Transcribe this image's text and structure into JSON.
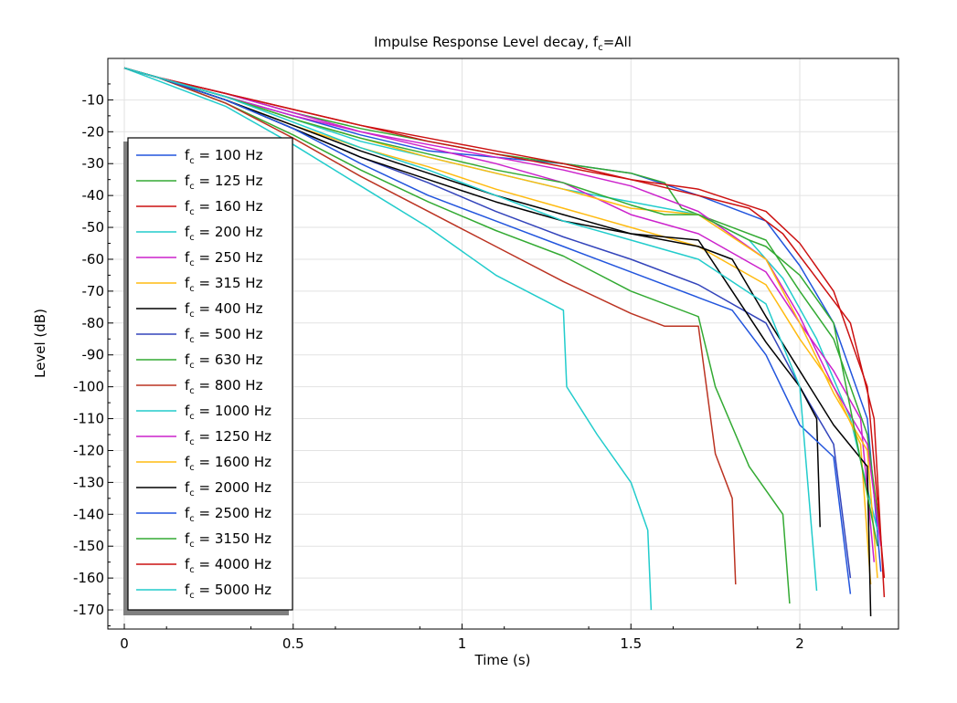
{
  "chart_data": {
    "type": "line",
    "title": "Impulse Response   Level decay, f",
    "title_sub": "c",
    "title_tail": "=All",
    "xlabel": "Time (s)",
    "ylabel": "Level (dB)",
    "xlim": [
      0,
      2.3
    ],
    "ylim": [
      -176,
      3
    ],
    "xticks": [
      0,
      0.5,
      1,
      1.5,
      2
    ],
    "xtick_labels": [
      "0",
      "0.5",
      "1",
      "1.5",
      "2"
    ],
    "yticks": [
      -10,
      -20,
      -30,
      -40,
      -50,
      -60,
      -70,
      -80,
      -90,
      -100,
      -110,
      -120,
      -130,
      -140,
      -150,
      -160,
      -170
    ],
    "grid": true,
    "legend_placement": "left",
    "legend_prefix": "f",
    "legend_prefix_sub": "c",
    "series": [
      {
        "name": " = 100 Hz",
        "color": "#2255dd",
        "x": [
          0,
          0.1,
          0.3,
          0.5,
          0.7,
          0.9,
          1.1,
          1.3,
          1.5,
          1.7,
          1.9,
          2.0,
          2.1,
          2.2,
          2.24
        ],
        "y": [
          0,
          -3,
          -9,
          -15,
          -21,
          -26,
          -28,
          -30,
          -33,
          -40,
          -48,
          -62,
          -80,
          -110,
          -158
        ]
      },
      {
        "name": " = 125 Hz",
        "color": "#33aa33",
        "x": [
          0,
          0.1,
          0.3,
          0.5,
          0.7,
          0.9,
          1.1,
          1.3,
          1.5,
          1.6,
          1.65,
          1.8,
          1.9,
          2.0,
          2.1,
          2.2,
          2.24
        ],
        "y": [
          0,
          -3,
          -8,
          -14,
          -19,
          -23,
          -27,
          -30,
          -33,
          -36,
          -44,
          -50,
          -54,
          -70,
          -85,
          -115,
          -148
        ]
      },
      {
        "name": " = 160 Hz",
        "color": "#cc1111",
        "x": [
          0,
          0.1,
          0.3,
          0.5,
          0.7,
          0.9,
          1.1,
          1.3,
          1.5,
          1.7,
          1.85,
          1.95,
          2.05,
          2.15,
          2.22,
          2.25
        ],
        "y": [
          0,
          -3,
          -8,
          -13,
          -18,
          -23,
          -27,
          -31,
          -35,
          -40,
          -44,
          -52,
          -66,
          -80,
          -110,
          -166
        ]
      },
      {
        "name": " = 200 Hz",
        "color": "#22cccc",
        "x": [
          0,
          0.1,
          0.3,
          0.5,
          0.7,
          0.9,
          1.1,
          1.3,
          1.5,
          1.7,
          1.85,
          1.95,
          2.05,
          2.15,
          2.23
        ],
        "y": [
          0,
          -3,
          -9,
          -16,
          -23,
          -28,
          -33,
          -38,
          -42,
          -46,
          -54,
          -66,
          -85,
          -110,
          -145
        ]
      },
      {
        "name": " = 250 Hz",
        "color": "#cc22cc",
        "x": [
          0,
          0.1,
          0.3,
          0.5,
          0.7,
          0.9,
          1.1,
          1.3,
          1.5,
          1.7,
          1.9,
          2.0,
          2.1,
          2.18,
          2.22
        ],
        "y": [
          0,
          -3,
          -9,
          -15,
          -20,
          -25,
          -30,
          -36,
          -46,
          -52,
          -64,
          -80,
          -95,
          -110,
          -155
        ]
      },
      {
        "name": " = 315 Hz",
        "color": "#ffbb11",
        "x": [
          0,
          0.1,
          0.3,
          0.5,
          0.7,
          0.9,
          1.1,
          1.3,
          1.5,
          1.7,
          1.9,
          2.0,
          2.1,
          2.18,
          2.21
        ],
        "y": [
          0,
          -3,
          -10,
          -18,
          -25,
          -31,
          -38,
          -44,
          -50,
          -56,
          -68,
          -85,
          -100,
          -118,
          -162
        ]
      },
      {
        "name": " = 400 Hz",
        "color": "#000000",
        "x": [
          0,
          0.1,
          0.3,
          0.5,
          0.7,
          0.9,
          1.1,
          1.3,
          1.5,
          1.7,
          1.8,
          1.9,
          2.0,
          2.1,
          2.2,
          2.21
        ],
        "y": [
          0,
          -3,
          -10,
          -18,
          -26,
          -33,
          -40,
          -46,
          -52,
          -56,
          -60,
          -78,
          -95,
          -112,
          -125,
          -172
        ]
      },
      {
        "name": " = 500 Hz",
        "color": "#3344bb",
        "x": [
          0,
          0.1,
          0.3,
          0.5,
          0.7,
          0.9,
          1.1,
          1.3,
          1.5,
          1.7,
          1.9,
          2.0,
          2.1,
          2.15
        ],
        "y": [
          0,
          -3,
          -10,
          -19,
          -28,
          -36,
          -45,
          -53,
          -60,
          -68,
          -80,
          -100,
          -118,
          -160
        ]
      },
      {
        "name": " = 630 Hz",
        "color": "#33aa33",
        "x": [
          0,
          0.1,
          0.3,
          0.5,
          0.7,
          0.9,
          1.1,
          1.3,
          1.5,
          1.7,
          1.75,
          1.85,
          1.95,
          1.97
        ],
        "y": [
          0,
          -3,
          -11,
          -21,
          -32,
          -42,
          -51,
          -59,
          -70,
          -78,
          -100,
          -125,
          -140,
          -168
        ]
      },
      {
        "name": " = 800 Hz",
        "color": "#bb3322",
        "x": [
          0,
          0.1,
          0.3,
          0.5,
          0.7,
          0.9,
          1.1,
          1.3,
          1.5,
          1.6,
          1.7,
          1.75,
          1.8,
          1.81
        ],
        "y": [
          0,
          -3,
          -11,
          -22,
          -34,
          -45,
          -56,
          -67,
          -77,
          -81,
          -81,
          -121,
          -135,
          -162
        ]
      },
      {
        "name": " = 1000 Hz",
        "color": "#22cccc",
        "x": [
          0,
          0.1,
          0.3,
          0.5,
          0.7,
          0.9,
          1.1,
          1.3,
          1.31,
          1.4,
          1.5,
          1.55,
          1.56
        ],
        "y": [
          0,
          -4,
          -12,
          -24,
          -37,
          -50,
          -65,
          -76,
          -100,
          -115,
          -130,
          -145,
          -170
        ]
      },
      {
        "name": " = 1250 Hz",
        "color": "#cc22cc",
        "x": [
          0,
          0.1,
          0.3,
          0.5,
          0.7,
          0.9,
          1.1,
          1.3,
          1.5,
          1.7,
          1.9,
          2.0,
          2.1,
          2.2,
          2.24
        ],
        "y": [
          0,
          -3,
          -8,
          -14,
          -20,
          -24,
          -28,
          -32,
          -37,
          -45,
          -60,
          -78,
          -100,
          -118,
          -150
        ]
      },
      {
        "name": " = 1600 Hz",
        "color": "#ffbb11",
        "x": [
          0,
          0.1,
          0.3,
          0.5,
          0.7,
          0.9,
          1.1,
          1.3,
          1.5,
          1.7,
          1.9,
          2.0,
          2.1,
          2.2,
          2.23
        ],
        "y": [
          0,
          -3,
          -9,
          -16,
          -22,
          -28,
          -33,
          -38,
          -44,
          -46,
          -60,
          -80,
          -102,
          -120,
          -160
        ]
      },
      {
        "name": " = 2000 Hz",
        "color": "#000000",
        "x": [
          0,
          0.1,
          0.3,
          0.5,
          0.7,
          0.9,
          1.1,
          1.3,
          1.5,
          1.7,
          1.8,
          1.9,
          2.0,
          2.05,
          2.06
        ],
        "y": [
          0,
          -3,
          -10,
          -19,
          -28,
          -35,
          -42,
          -48,
          -52,
          -54,
          -70,
          -86,
          -100,
          -110,
          -144
        ]
      },
      {
        "name": " = 2500 Hz",
        "color": "#2255dd",
        "x": [
          0,
          0.1,
          0.3,
          0.5,
          0.7,
          0.9,
          1.1,
          1.3,
          1.5,
          1.7,
          1.8,
          1.9,
          2.0,
          2.1,
          2.15
        ],
        "y": [
          0,
          -3,
          -10,
          -19,
          -30,
          -40,
          -48,
          -56,
          -64,
          -72,
          -76,
          -90,
          -112,
          -122,
          -165
        ]
      },
      {
        "name": " = 3150 Hz",
        "color": "#33aa33",
        "x": [
          0,
          0.1,
          0.3,
          0.5,
          0.7,
          0.9,
          1.1,
          1.3,
          1.5,
          1.6,
          1.7,
          1.85,
          1.9,
          2.0,
          2.1,
          2.23
        ],
        "y": [
          0,
          -3,
          -9,
          -16,
          -22,
          -27,
          -32,
          -36,
          -43,
          -46,
          -46,
          -54,
          -56,
          -65,
          -80,
          -150
        ]
      },
      {
        "name": " = 4000 Hz",
        "color": "#cc1111",
        "x": [
          0,
          0.1,
          0.3,
          0.5,
          0.7,
          0.9,
          1.1,
          1.3,
          1.5,
          1.7,
          1.9,
          2.0,
          2.1,
          2.2,
          2.25
        ],
        "y": [
          0,
          -3,
          -8,
          -13,
          -18,
          -22,
          -26,
          -30,
          -35,
          -38,
          -45,
          -55,
          -70,
          -100,
          -160
        ]
      },
      {
        "name": " = 5000 Hz",
        "color": "#22cccc",
        "x": [
          0,
          0.1,
          0.3,
          0.5,
          0.7,
          0.9,
          1.1,
          1.3,
          1.5,
          1.7,
          1.9,
          2.0,
          2.05
        ],
        "y": [
          0,
          -3,
          -9,
          -17,
          -25,
          -32,
          -40,
          -48,
          -54,
          -60,
          -74,
          -100,
          -164
        ]
      }
    ]
  }
}
